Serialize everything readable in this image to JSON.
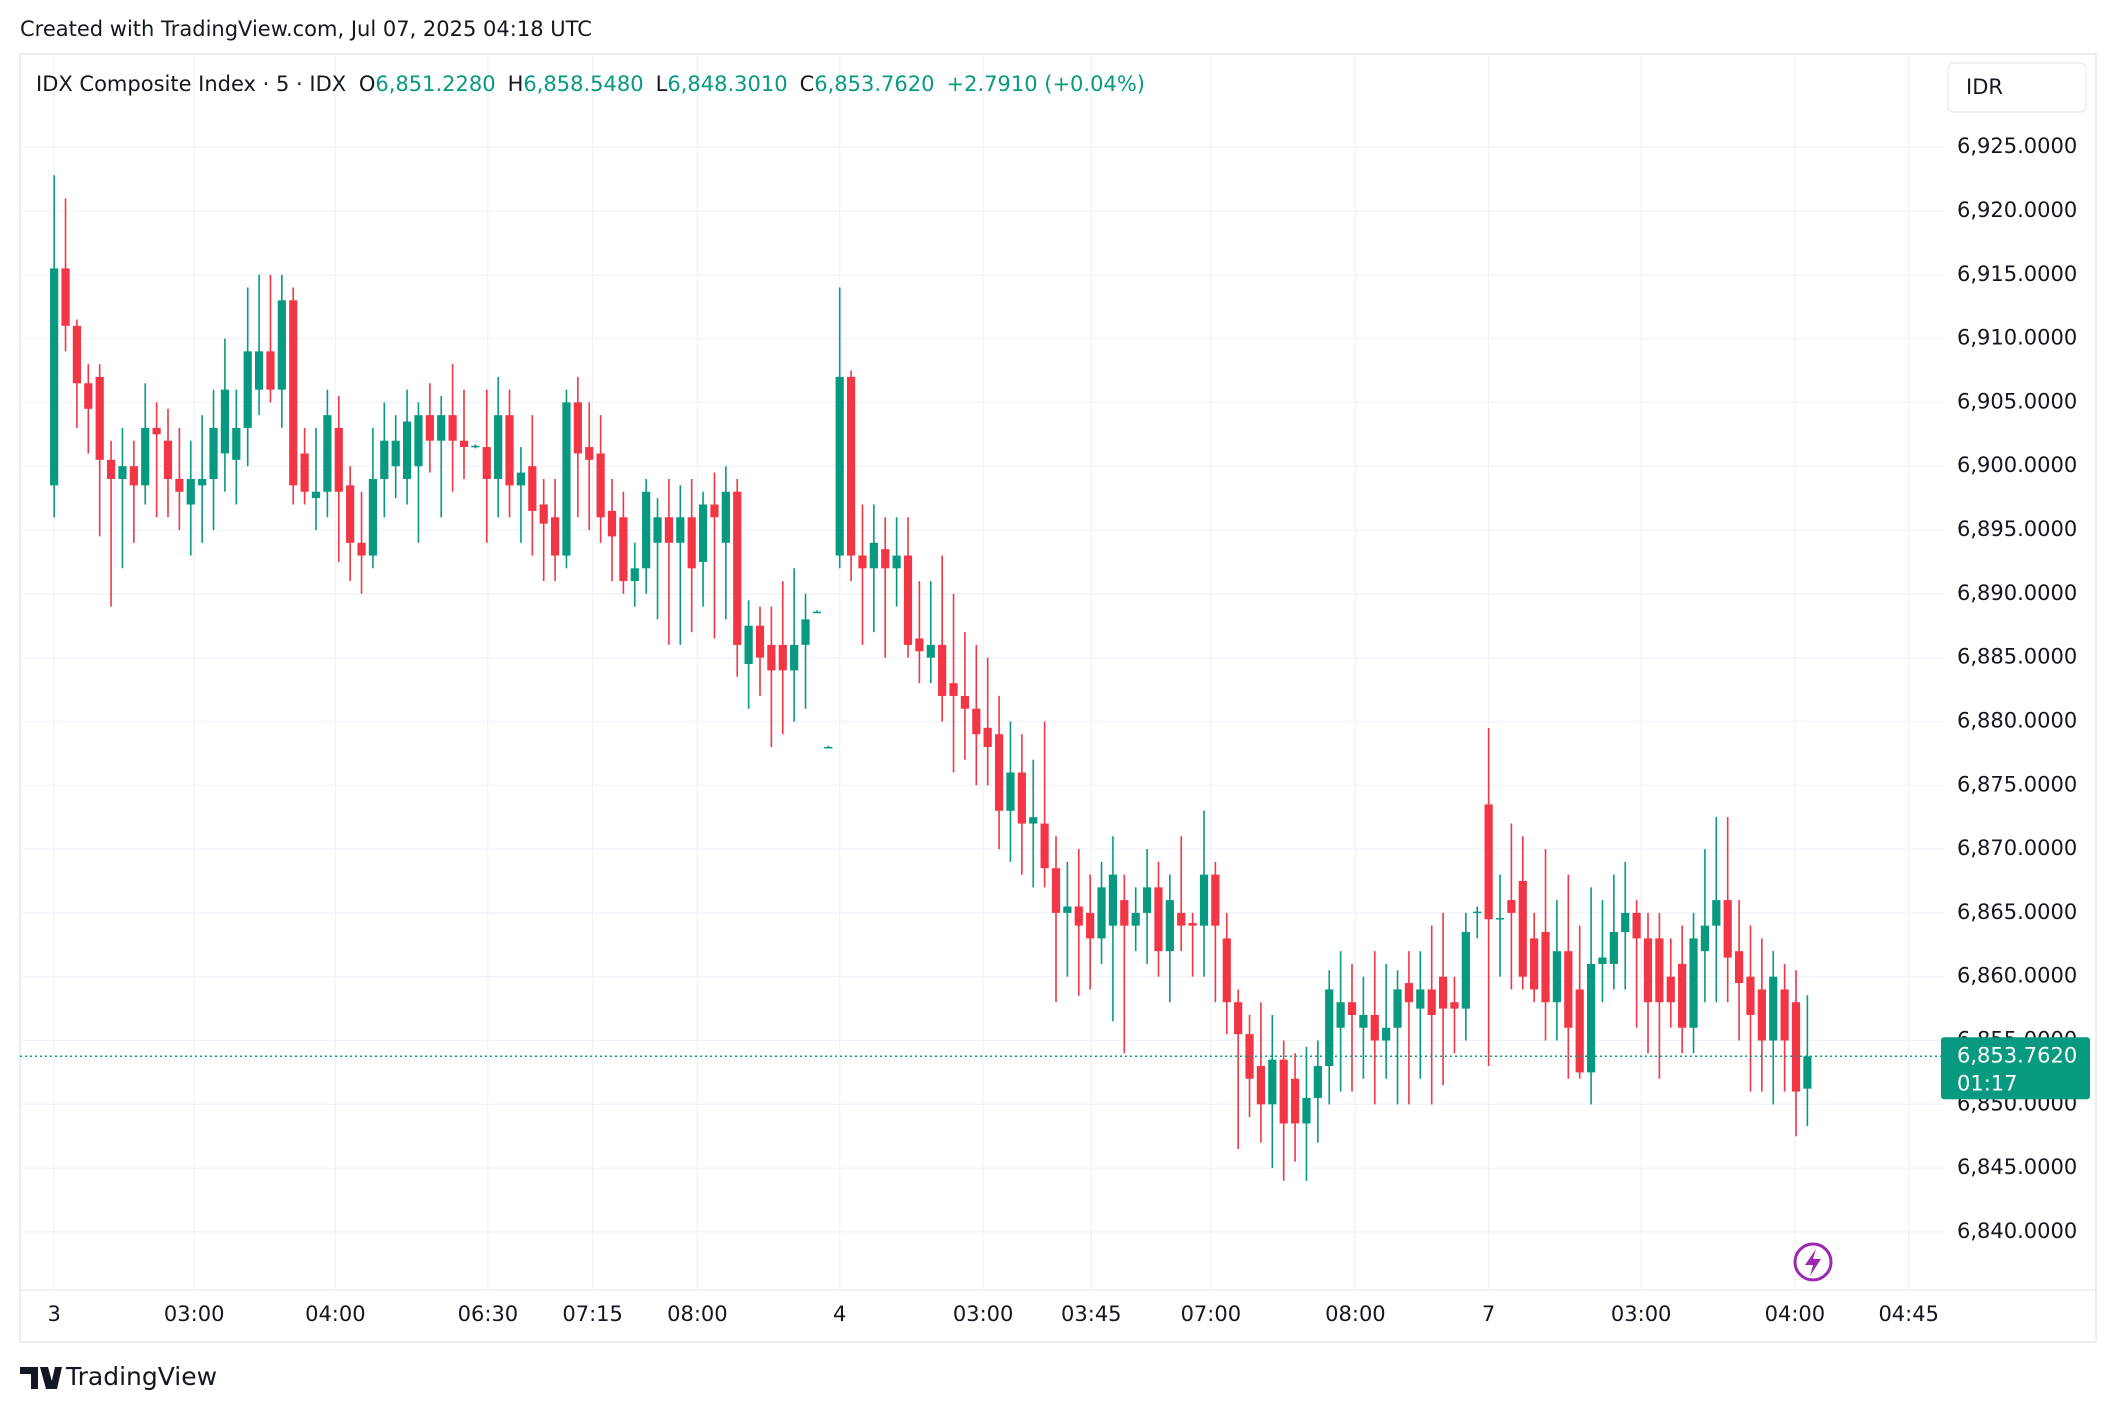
{
  "header": {
    "text": "Created with TradingView.com, Jul 07, 2025 04:18 UTC"
  },
  "footer": {
    "brand": "TradingView"
  },
  "chart_data": {
    "type": "candlestick",
    "symbol": "IDX Composite Index · 5 · IDX",
    "legend": [
      {
        "label": "O",
        "value": "6,851.2280"
      },
      {
        "label": "H",
        "value": "6,858.5480"
      },
      {
        "label": "L",
        "value": "6,848.3010"
      },
      {
        "label": "C",
        "value": "6,853.7620"
      }
    ],
    "change": "+2.7910 (+0.04%)",
    "currency": "IDR",
    "up_color": "#089981",
    "down_color": "#f23645",
    "last_price": {
      "value": 6853.762,
      "label": "6,853.7620",
      "countdown": "01:17"
    },
    "xlim": [
      -3,
      166
    ],
    "xticks": [
      {
        "value": 0,
        "label": "3"
      },
      {
        "value": 12.3,
        "label": "03:00"
      },
      {
        "value": 24.7,
        "label": "04:00"
      },
      {
        "value": 38.1,
        "label": "06:30"
      },
      {
        "value": 47.3,
        "label": "07:15"
      },
      {
        "value": 56.5,
        "label": "08:00"
      },
      {
        "value": 69,
        "label": "4"
      },
      {
        "value": 81.6,
        "label": "03:00"
      },
      {
        "value": 91.1,
        "label": "03:45"
      },
      {
        "value": 101.6,
        "label": "07:00"
      },
      {
        "value": 114.3,
        "label": "08:00"
      },
      {
        "value": 126,
        "label": "7"
      },
      {
        "value": 139.4,
        "label": "03:00"
      },
      {
        "value": 152.9,
        "label": "04:00"
      },
      {
        "value": 162.9,
        "label": "04:45"
      }
    ],
    "ylim": [
      6835.45,
      6932.3
    ],
    "yticks": [
      {
        "value": 6840,
        "label": "6,840.0000"
      },
      {
        "value": 6845,
        "label": "6,845.0000"
      },
      {
        "value": 6850,
        "label": "6,850.0000"
      },
      {
        "value": 6855,
        "label": "6,855.0000"
      },
      {
        "value": 6860,
        "label": "6,860.0000"
      },
      {
        "value": 6865,
        "label": "6,865.0000"
      },
      {
        "value": 6870,
        "label": "6,870.0000"
      },
      {
        "value": 6875,
        "label": "6,875.0000"
      },
      {
        "value": 6880,
        "label": "6,880.0000"
      },
      {
        "value": 6885,
        "label": "6,885.0000"
      },
      {
        "value": 6890,
        "label": "6,890.0000"
      },
      {
        "value": 6895,
        "label": "6,895.0000"
      },
      {
        "value": 6900,
        "label": "6,900.0000"
      },
      {
        "value": 6905,
        "label": "6,905.0000"
      },
      {
        "value": 6910,
        "label": "6,910.0000"
      },
      {
        "value": 6915,
        "label": "6,915.0000"
      },
      {
        "value": 6920,
        "label": "6,920.0000"
      },
      {
        "value": 6925,
        "label": "6,925.0000"
      }
    ],
    "grid": true,
    "candles": [
      [
        6898.5,
        6922.8,
        6896,
        6915.5
      ],
      [
        6915.5,
        6921,
        6909,
        6911
      ],
      [
        6911,
        6911.5,
        6903,
        6906.5
      ],
      [
        6906.5,
        6908,
        6901,
        6904.5
      ],
      [
        6907,
        6908,
        6894.5,
        6900.5
      ],
      [
        6900.5,
        6902,
        6889,
        6899
      ],
      [
        6899,
        6903,
        6892,
        6900
      ],
      [
        6900,
        6902,
        6894,
        6898.5
      ],
      [
        6898.5,
        6906.5,
        6897,
        6903
      ],
      [
        6903,
        6905,
        6896,
        6902.5
      ],
      [
        6902,
        6904.5,
        6896,
        6899
      ],
      [
        6899,
        6903,
        6895,
        6898
      ],
      [
        6897,
        6902,
        6893,
        6899
      ],
      [
        6898.5,
        6904,
        6894,
        6899
      ],
      [
        6899,
        6906,
        6895,
        6903
      ],
      [
        6901,
        6910,
        6898,
        6906
      ],
      [
        6900.5,
        6906,
        6897,
        6903
      ],
      [
        6903,
        6914,
        6900,
        6909
      ],
      [
        6906,
        6915,
        6904,
        6909
      ],
      [
        6909,
        6915,
        6905,
        6906
      ],
      [
        6906,
        6915,
        6903,
        6913
      ],
      [
        6913,
        6914,
        6897,
        6898.5
      ],
      [
        6901,
        6903,
        6897,
        6898
      ],
      [
        6897.5,
        6903,
        6895,
        6898
      ],
      [
        6898,
        6906,
        6896,
        6904
      ],
      [
        6903,
        6905.5,
        6892.5,
        6898
      ],
      [
        6898.5,
        6900,
        6891,
        6894
      ],
      [
        6894,
        6898,
        6890,
        6893
      ],
      [
        6893,
        6903,
        6892,
        6899
      ],
      [
        6899,
        6905,
        6896,
        6902
      ],
      [
        6900,
        6904,
        6897.5,
        6902
      ],
      [
        6899,
        6906,
        6897,
        6903.5
      ],
      [
        6900,
        6905,
        6894,
        6904
      ],
      [
        6904,
        6906.5,
        6899.5,
        6902
      ],
      [
        6902,
        6905.5,
        6896,
        6904
      ],
      [
        6904,
        6908,
        6898,
        6902
      ],
      [
        6902,
        6906,
        6899,
        6901.5
      ],
      [
        6901.5,
        6901.7,
        6901.4,
        6901.6
      ],
      [
        6901.5,
        6906,
        6894,
        6899
      ],
      [
        6899,
        6907,
        6896,
        6904
      ],
      [
        6904,
        6906,
        6896,
        6898.5
      ],
      [
        6898.5,
        6901.5,
        6894,
        6899.5
      ],
      [
        6900,
        6904,
        6893,
        6896.5
      ],
      [
        6897,
        6899,
        6891,
        6895.5
      ],
      [
        6896,
        6899,
        6891,
        6893
      ],
      [
        6893,
        6906,
        6892,
        6905
      ],
      [
        6905,
        6907,
        6896,
        6901
      ],
      [
        6901.5,
        6905,
        6895,
        6900.5
      ],
      [
        6901,
        6904,
        6894,
        6896
      ],
      [
        6896.5,
        6899,
        6891,
        6894.5
      ],
      [
        6896,
        6898,
        6890,
        6891
      ],
      [
        6891,
        6894,
        6889,
        6892
      ],
      [
        6892,
        6899,
        6890,
        6898
      ],
      [
        6894,
        6897.5,
        6888,
        6896
      ],
      [
        6896,
        6899,
        6886,
        6894
      ],
      [
        6894,
        6898.5,
        6886,
        6896
      ],
      [
        6896,
        6899,
        6887,
        6892
      ],
      [
        6892.5,
        6898,
        6889,
        6897
      ],
      [
        6897,
        6899.5,
        6886.5,
        6896
      ],
      [
        6894,
        6900,
        6888,
        6898
      ],
      [
        6898,
        6899,
        6883.5,
        6886
      ],
      [
        6884.5,
        6889.5,
        6881,
        6887.5
      ],
      [
        6887.5,
        6889,
        6882,
        6885
      ],
      [
        6886,
        6889,
        6878,
        6884
      ],
      [
        6886,
        6891,
        6879,
        6884
      ],
      [
        6884,
        6892,
        6880,
        6886
      ],
      [
        6886,
        6890,
        6881,
        6888
      ],
      [
        6888.6,
        6888.7,
        6888.5,
        6888.6
      ],
      [
        6878,
        6878.1,
        6877.9,
        6878
      ],
      [
        6893,
        6914,
        6892,
        6907
      ],
      [
        6907,
        6907.5,
        6891,
        6893
      ],
      [
        6893,
        6897,
        6886,
        6892
      ],
      [
        6892,
        6897,
        6887,
        6894
      ],
      [
        6893.5,
        6896,
        6885,
        6892
      ],
      [
        6892,
        6896,
        6889,
        6893
      ],
      [
        6893,
        6896,
        6885,
        6886
      ],
      [
        6886.5,
        6891,
        6883,
        6885.5
      ],
      [
        6885,
        6891,
        6883,
        6886
      ],
      [
        6886,
        6893,
        6880,
        6882
      ],
      [
        6883,
        6890,
        6876,
        6882
      ],
      [
        6882,
        6887,
        6877,
        6881
      ],
      [
        6881,
        6886,
        6875,
        6879
      ],
      [
        6879.5,
        6885,
        6875,
        6878
      ],
      [
        6879,
        6882,
        6870,
        6873
      ],
      [
        6873,
        6880,
        6869,
        6876
      ],
      [
        6876,
        6879,
        6868,
        6872
      ],
      [
        6872,
        6877,
        6867,
        6872.5
      ],
      [
        6872,
        6880,
        6867,
        6868.5
      ],
      [
        6868.5,
        6871,
        6858,
        6865
      ],
      [
        6865,
        6869,
        6860,
        6865.5
      ],
      [
        6865.5,
        6870,
        6858.5,
        6864
      ],
      [
        6865,
        6868,
        6859,
        6863
      ],
      [
        6863,
        6869,
        6861,
        6867
      ],
      [
        6864,
        6871,
        6856.5,
        6868
      ],
      [
        6866,
        6868,
        6854,
        6864
      ],
      [
        6864,
        6867,
        6862,
        6865
      ],
      [
        6865,
        6870,
        6861,
        6867
      ],
      [
        6867,
        6869,
        6860,
        6862
      ],
      [
        6862,
        6868,
        6858,
        6866
      ],
      [
        6865,
        6871,
        6862,
        6864
      ],
      [
        6864.2,
        6865,
        6860,
        6864
      ],
      [
        6864,
        6873,
        6860,
        6868
      ],
      [
        6868,
        6869,
        6858,
        6864
      ],
      [
        6863,
        6865,
        6855.5,
        6858
      ],
      [
        6858,
        6859,
        6846.5,
        6855.5
      ],
      [
        6855.5,
        6857,
        6849,
        6852
      ],
      [
        6853,
        6858,
        6847,
        6850
      ],
      [
        6850,
        6857,
        6845,
        6853.5
      ],
      [
        6853.5,
        6855,
        6844,
        6848.5
      ],
      [
        6852,
        6854,
        6845.5,
        6848.5
      ],
      [
        6848.5,
        6854.5,
        6844,
        6850.5
      ],
      [
        6850.5,
        6855,
        6847,
        6853
      ],
      [
        6853,
        6860.5,
        6850,
        6859
      ],
      [
        6856,
        6862,
        6851,
        6858
      ],
      [
        6858,
        6861,
        6851,
        6857
      ],
      [
        6856,
        6860,
        6852,
        6857
      ],
      [
        6857,
        6862,
        6850,
        6855
      ],
      [
        6855,
        6861,
        6852,
        6856
      ],
      [
        6856,
        6860.5,
        6850,
        6859
      ],
      [
        6859.5,
        6862,
        6850,
        6858
      ],
      [
        6857.5,
        6862,
        6852,
        6859
      ],
      [
        6859,
        6864,
        6850,
        6857
      ],
      [
        6860,
        6865,
        6851.5,
        6857.5
      ],
      [
        6858,
        6860,
        6854,
        6857.5
      ],
      [
        6857.5,
        6865,
        6855,
        6863.5
      ],
      [
        6865,
        6865.5,
        6863,
        6865.1
      ],
      [
        6873.5,
        6879.5,
        6853,
        6864.5
      ],
      [
        6864.5,
        6868,
        6860,
        6864.6
      ],
      [
        6866,
        6872,
        6859,
        6865
      ],
      [
        6867.5,
        6871,
        6859,
        6860
      ],
      [
        6863,
        6865,
        6858,
        6859
      ],
      [
        6863.5,
        6870,
        6855,
        6858
      ],
      [
        6858,
        6866,
        6855,
        6862
      ],
      [
        6862,
        6868,
        6852,
        6856
      ],
      [
        6859,
        6864,
        6852,
        6852.5
      ],
      [
        6852.5,
        6867,
        6850,
        6861
      ],
      [
        6861,
        6866,
        6858,
        6861.5
      ],
      [
        6861,
        6868,
        6859,
        6863.5
      ],
      [
        6863.5,
        6869,
        6859,
        6865
      ],
      [
        6865,
        6866,
        6856,
        6863
      ],
      [
        6863,
        6865,
        6854,
        6858
      ],
      [
        6863,
        6865,
        6852,
        6858
      ],
      [
        6860,
        6863,
        6856,
        6858
      ],
      [
        6861,
        6864,
        6854,
        6856
      ],
      [
        6856,
        6865,
        6854,
        6863
      ],
      [
        6862,
        6870,
        6858,
        6864
      ],
      [
        6864,
        6872.5,
        6858,
        6866
      ],
      [
        6866,
        6872.5,
        6858,
        6861.5
      ],
      [
        6862,
        6866,
        6855,
        6859.5
      ],
      [
        6860,
        6864,
        6851,
        6857
      ],
      [
        6859,
        6863,
        6851,
        6855
      ],
      [
        6855,
        6862,
        6850,
        6860
      ],
      [
        6859,
        6861,
        6851,
        6855
      ],
      [
        6858,
        6860.5,
        6847.5,
        6851
      ],
      [
        6851.228,
        6858.548,
        6848.301,
        6853.762
      ]
    ]
  }
}
